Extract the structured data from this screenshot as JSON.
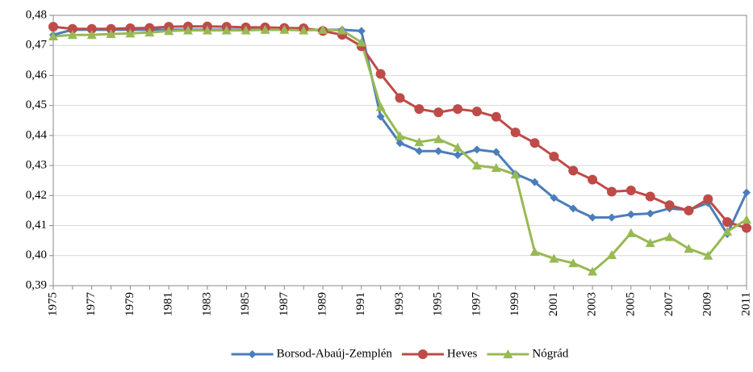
{
  "chart_data": {
    "type": "line",
    "categories": [
      "1975",
      null,
      "1977",
      null,
      "1979",
      null,
      "1981",
      null,
      "1983",
      null,
      "1985",
      null,
      "1987",
      null,
      "1989",
      null,
      "1991",
      null,
      "1993",
      null,
      "1995",
      null,
      "1997",
      null,
      "1999",
      null,
      "2001",
      null,
      "2003",
      null,
      "2005",
      null,
      "2007",
      null,
      "2009",
      null,
      "2011"
    ],
    "ylim": [
      0.39,
      0.48
    ],
    "yticks": [
      {
        "value": 0.39,
        "label": "0,39"
      },
      {
        "value": 0.4,
        "label": "0,40"
      },
      {
        "value": 0.41,
        "label": "0,41"
      },
      {
        "value": 0.42,
        "label": "0,42"
      },
      {
        "value": 0.43,
        "label": "0,43"
      },
      {
        "value": 0.44,
        "label": "0,44"
      },
      {
        "value": 0.45,
        "label": "0,45"
      },
      {
        "value": 0.46,
        "label": "0,46"
      },
      {
        "value": 0.47,
        "label": "0,47"
      },
      {
        "value": 0.48,
        "label": "0,48"
      }
    ],
    "grid": true,
    "legend": "bottom",
    "series": [
      {
        "name": "Borsod-Abaúj-Zemplén",
        "color": "#4a7ebb",
        "marker": "diamond",
        "values": [
          0.4735,
          0.4752,
          0.4752,
          0.4752,
          0.4752,
          0.4752,
          0.4752,
          0.4752,
          0.4752,
          0.4752,
          0.4752,
          0.4752,
          0.4752,
          0.4752,
          0.4752,
          0.4752,
          0.4748,
          0.4463,
          0.4375,
          0.4348,
          0.4348,
          0.4335,
          0.4353,
          0.4345,
          0.4272,
          0.4245,
          0.4192,
          0.4157,
          0.4127,
          0.4127,
          0.4137,
          0.414,
          0.4157,
          0.4152,
          0.4175,
          0.4072,
          0.421
        ]
      },
      {
        "name": "Heves",
        "color": "#be4b48",
        "marker": "circle",
        "values": [
          0.4762,
          0.4755,
          0.4755,
          0.4755,
          0.4757,
          0.4758,
          0.4762,
          0.4763,
          0.4763,
          0.4762,
          0.476,
          0.476,
          0.4758,
          0.4757,
          0.4748,
          0.4735,
          0.4697,
          0.4605,
          0.4525,
          0.4488,
          0.4477,
          0.4488,
          0.448,
          0.4462,
          0.441,
          0.4375,
          0.433,
          0.4283,
          0.4253,
          0.4213,
          0.4217,
          0.4197,
          0.4168,
          0.415,
          0.4188,
          0.4112,
          0.4092
        ]
      },
      {
        "name": "Nógrád",
        "color": "#98b954",
        "marker": "triangle",
        "values": [
          0.473,
          0.4735,
          0.4735,
          0.4738,
          0.474,
          0.4743,
          0.4748,
          0.475,
          0.475,
          0.475,
          0.475,
          0.4752,
          0.4752,
          0.475,
          0.4752,
          0.475,
          0.471,
          0.4495,
          0.4398,
          0.4378,
          0.4388,
          0.436,
          0.43,
          0.4292,
          0.427,
          0.4013,
          0.399,
          0.3975,
          0.3947,
          0.4002,
          0.4075,
          0.4042,
          0.4062,
          0.4023,
          0.4,
          0.408,
          0.412
        ]
      }
    ]
  }
}
